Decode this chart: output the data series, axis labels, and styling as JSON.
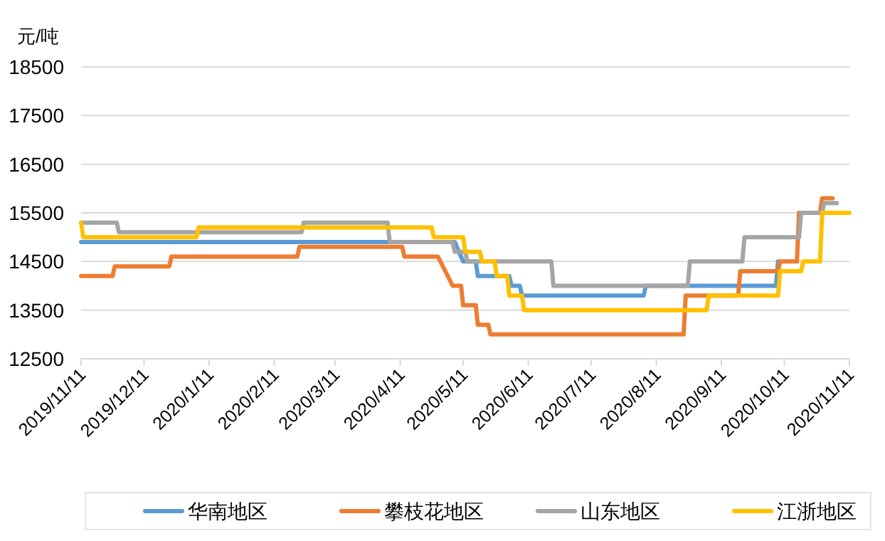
{
  "chart_data": {
    "type": "line",
    "ylabel": "元/吨",
    "xlim": [
      "2019-11-11",
      "2020-11-11"
    ],
    "ylim": [
      12500,
      18500
    ],
    "yticks": [
      12500,
      13500,
      14500,
      15500,
      16500,
      17500,
      18500
    ],
    "xticks": [
      {
        "value": "2019-11-11",
        "label": "2019/11/11"
      },
      {
        "value": "2019-12-11",
        "label": "2019/12/11"
      },
      {
        "value": "2020-01-11",
        "label": "2020/1/11"
      },
      {
        "value": "2020-02-11",
        "label": "2020/2/11"
      },
      {
        "value": "2020-03-11",
        "label": "2020/3/11"
      },
      {
        "value": "2020-04-11",
        "label": "2020/4/11"
      },
      {
        "value": "2020-05-11",
        "label": "2020/5/11"
      },
      {
        "value": "2020-06-11",
        "label": "2020/6/11"
      },
      {
        "value": "2020-07-11",
        "label": "2020/7/11"
      },
      {
        "value": "2020-08-11",
        "label": "2020/8/11"
      },
      {
        "value": "2020-09-11",
        "label": "2020/9/11"
      },
      {
        "value": "2020-10-11",
        "label": "2020/10/11"
      },
      {
        "value": "2020-11-11",
        "label": "2020/11/11"
      }
    ],
    "grid": "y",
    "legend": "bottom",
    "marker": "none",
    "line_style": "solid",
    "series": [
      {
        "name": "华南地区",
        "color": "#5b9bd5",
        "x": [
          "2019-11-11",
          "2020-05-07",
          "2020-05-11",
          "2020-05-17",
          "2020-05-18",
          "2020-06-02",
          "2020-06-03",
          "2020-06-07",
          "2020-06-08",
          "2020-08-05",
          "2020-08-06",
          "2020-10-07",
          "2020-10-08"
        ],
        "values": [
          14900,
          14900,
          14500,
          14500,
          14200,
          14200,
          14000,
          14000,
          13800,
          13800,
          14000,
          14000,
          14500
        ]
      },
      {
        "name": "攀枝花地区",
        "color": "#ed7d31",
        "x": [
          "2019-11-11",
          "2019-11-26",
          "2019-11-27",
          "2019-12-23",
          "2019-12-24",
          "2020-02-22",
          "2020-02-23",
          "2020-04-12",
          "2020-04-13",
          "2020-04-29",
          "2020-05-06",
          "2020-05-10",
          "2020-05-11",
          "2020-05-17",
          "2020-05-18",
          "2020-05-23",
          "2020-05-24",
          "2020-08-24",
          "2020-08-25",
          "2020-09-19",
          "2020-09-20",
          "2020-10-08",
          "2020-10-09",
          "2020-10-17",
          "2020-10-18",
          "2020-10-28",
          "2020-10-29",
          "2020-11-03"
        ],
        "values": [
          14200,
          14200,
          14400,
          14400,
          14600,
          14600,
          14800,
          14800,
          14600,
          14600,
          14000,
          14000,
          13600,
          13600,
          13200,
          13200,
          13000,
          13000,
          13800,
          13800,
          14300,
          14300,
          14500,
          14500,
          15500,
          15500,
          15800,
          15800
        ]
      },
      {
        "name": "山东地区",
        "color": "#a5a5a5",
        "x": [
          "2019-11-11",
          "2019-11-28",
          "2019-11-29",
          "2020-02-24",
          "2020-02-25",
          "2020-04-05",
          "2020-04-06",
          "2020-05-06",
          "2020-05-07",
          "2020-05-12",
          "2020-05-13",
          "2020-06-22",
          "2020-06-23",
          "2020-08-26",
          "2020-08-27",
          "2020-09-21",
          "2020-09-22",
          "2020-10-18",
          "2020-10-19",
          "2020-10-29",
          "2020-10-30",
          "2020-11-05"
        ],
        "values": [
          15300,
          15300,
          15100,
          15100,
          15300,
          15300,
          14900,
          14900,
          14700,
          14700,
          14500,
          14500,
          14000,
          14000,
          14500,
          14500,
          15000,
          15000,
          15500,
          15500,
          15700,
          15700
        ]
      },
      {
        "name": "江浙地区",
        "color": "#ffc000",
        "x": [
          "2019-11-11",
          "2019-11-12",
          "2020-01-05",
          "2020-01-06",
          "2020-04-26",
          "2020-04-27",
          "2020-05-11",
          "2020-05-12",
          "2020-05-19",
          "2020-05-20",
          "2020-05-26",
          "2020-05-27",
          "2020-06-01",
          "2020-06-02",
          "2020-06-08",
          "2020-06-09",
          "2020-09-04",
          "2020-09-05",
          "2020-10-08",
          "2020-10-09",
          "2020-10-19",
          "2020-10-20",
          "2020-10-28",
          "2020-10-29",
          "2020-11-11"
        ],
        "values": [
          15300,
          15000,
          15000,
          15200,
          15200,
          15000,
          15000,
          14700,
          14700,
          14500,
          14500,
          14200,
          14200,
          13800,
          13800,
          13500,
          13500,
          13800,
          13800,
          14300,
          14300,
          14500,
          14500,
          15500,
          15500
        ]
      }
    ]
  }
}
